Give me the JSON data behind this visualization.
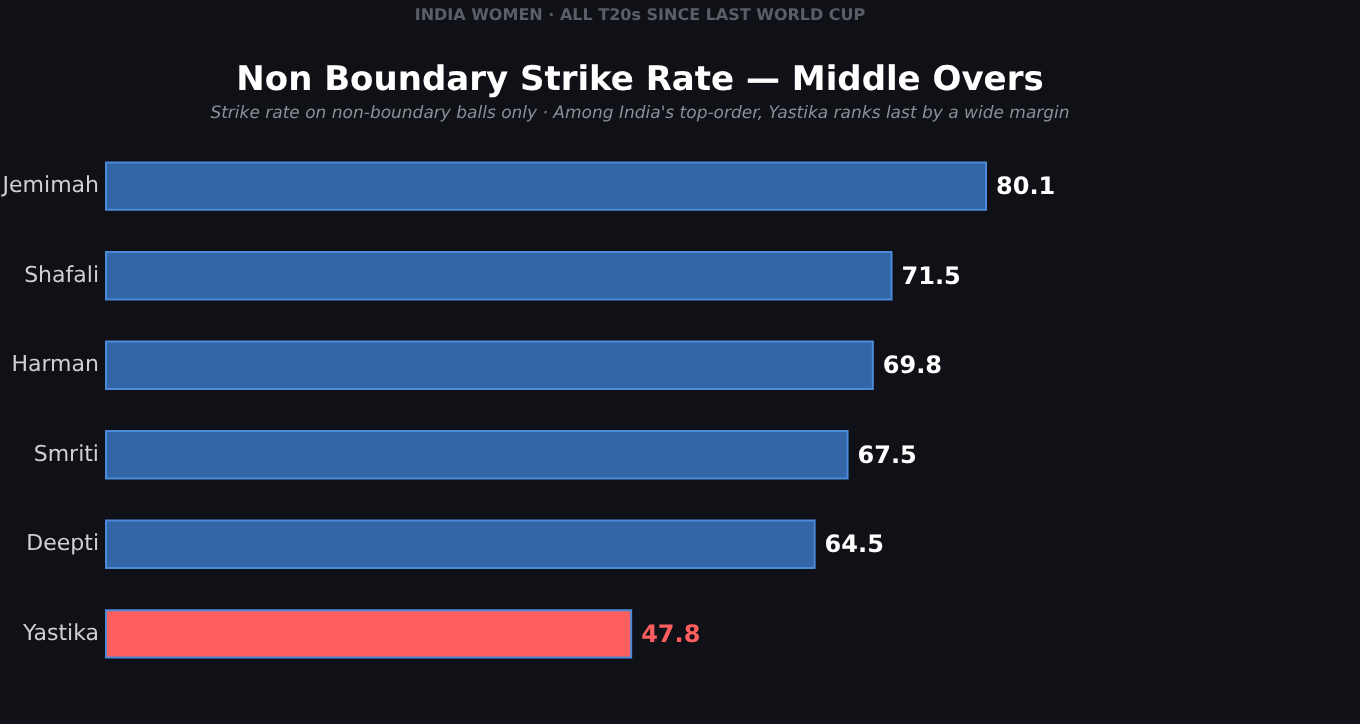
{
  "chart_data": {
    "type": "bar",
    "orientation": "horizontal",
    "title": "Non Boundary Strike Rate — Middle Overs",
    "subtitle": "Strike rate on non-boundary balls only  ·  Among India's top-order, Yastika ranks last by a wide margin",
    "annotations": [
      "INDIA WOMEN  ·  ALL T20s SINCE LAST WORLD CUP"
    ],
    "categories": [
      "Jemimah",
      "Shafali",
      "Harman",
      "Smriti",
      "Deepti",
      "Yastika"
    ],
    "values": [
      80.1,
      71.5,
      69.8,
      67.5,
      64.5,
      47.8
    ],
    "colors": [
      "#3366a6",
      "#3366a6",
      "#3366a6",
      "#3366a6",
      "#3366a6",
      "#ff5e5e"
    ],
    "data_labels": true,
    "tick_labels": "y"
  }
}
